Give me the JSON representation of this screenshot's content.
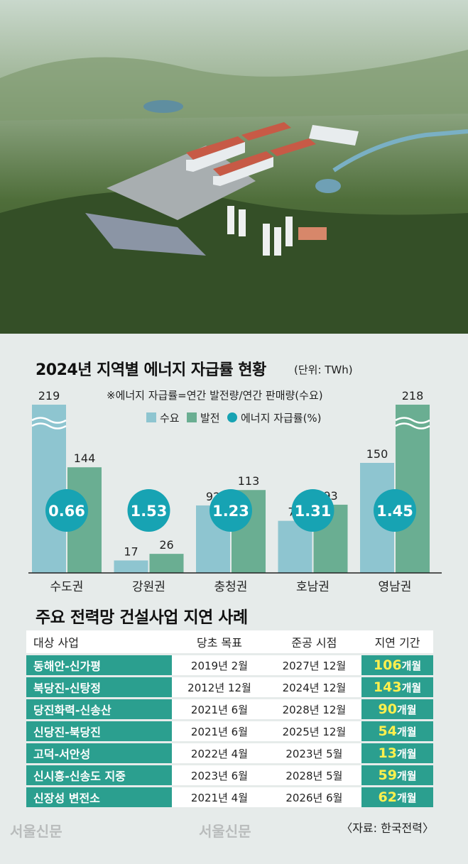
{
  "chart_data": {
    "type": "bar",
    "title": "2024년 지역별 에너지 자급률 현황",
    "unit": "(단위: TWh)",
    "note": "※에너지 자급률=연간 발전량/연간 판매량(수요)",
    "legend": [
      "수요",
      "발전",
      "에너지 자급률(%)"
    ],
    "legend_position": "top-right",
    "categories": [
      "수도권",
      "강원권",
      "충청권",
      "호남권",
      "영남권"
    ],
    "series": [
      {
        "name": "수요",
        "values": [
          219,
          17,
          92,
          71,
          150
        ],
        "color": "#8ec5d0"
      },
      {
        "name": "발전",
        "values": [
          144,
          26,
          113,
          93,
          218
        ],
        "color": "#6aae92"
      }
    ],
    "ratio": {
      "name": "에너지 자급률(%)",
      "values": [
        "0.66",
        "1.53",
        "1.23",
        "1.31",
        "1.45"
      ],
      "color": "#17a3b3"
    },
    "ylim": [
      0,
      150
    ],
    "axis_break": {
      "series": [
        0,
        1
      ],
      "values": [
        219,
        218
      ]
    }
  },
  "table": {
    "title": "주요 전력망 건설사업 지연 사례",
    "headers": [
      "대상 사업",
      "당초 목표",
      "준공 시점",
      "지연 기간"
    ],
    "rows": [
      {
        "name": "동해안-신가평",
        "target": "2019년 2월",
        "completion": "2027년 12월",
        "delay": "106",
        "unit": "개월"
      },
      {
        "name": "북당진-신탕정",
        "target": "2012년 12월",
        "completion": "2024년 12월",
        "delay": "143",
        "unit": "개월"
      },
      {
        "name": "당진화력-신송산",
        "target": "2021년 6월",
        "completion": "2028년 12월",
        "delay": "90",
        "unit": "개월"
      },
      {
        "name": "신당진-북당진",
        "target": "2021년 6월",
        "completion": "2025년 12월",
        "delay": "54",
        "unit": "개월"
      },
      {
        "name": "고덕-서안성",
        "target": "2022년 4월",
        "completion": "2023년 5월",
        "delay": "13",
        "unit": "개월"
      },
      {
        "name": "신시흥-신송도 지중",
        "target": "2023년 6월",
        "completion": "2028년 5월",
        "delay": "59",
        "unit": "개월"
      },
      {
        "name": "신장성 변전소",
        "target": "2021년 4월",
        "completion": "2026년 6월",
        "delay": "62",
        "unit": "개월"
      }
    ],
    "source": "〈자료: 한국전력〉"
  },
  "watermark": "서울신문"
}
